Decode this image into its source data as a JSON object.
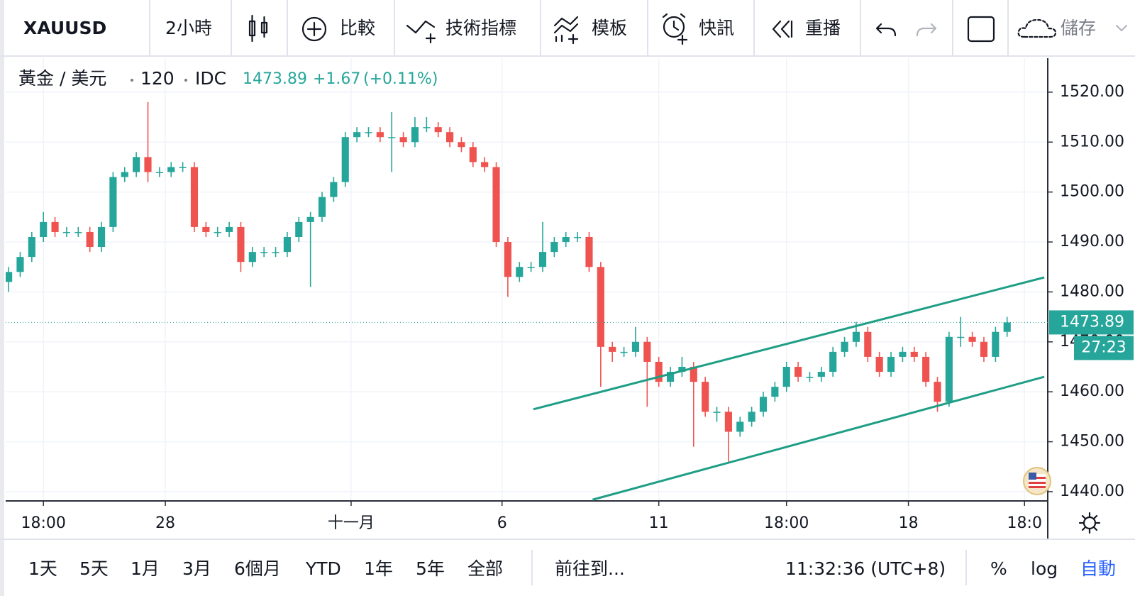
{
  "toolbar": {
    "symbol": "XAUUSD",
    "interval": "2小時",
    "compare": "比較",
    "indicators": "技術指標",
    "templates": "模板",
    "alerts": "快訊",
    "replay": "重播",
    "save": "儲存"
  },
  "chart_data": {
    "type": "candlestick",
    "instrument": "黃金 / 美元",
    "interval": "120",
    "source": "IDC",
    "last_price": 1473.89,
    "change": "+1.67",
    "change_percent": "(+0.11%)",
    "countdown": "27:23",
    "up_color": "#26a69a",
    "down_color": "#ef5350",
    "trendline_color": "#1f9e86",
    "open": [
      1482,
      1484,
      1487,
      1491,
      1494,
      1492,
      1492,
      1492,
      1489,
      1493,
      1503,
      1504,
      1507,
      1504,
      1504,
      1505,
      1505,
      1493,
      1492,
      1492,
      1493,
      1486,
      1488,
      1488,
      1488,
      1491,
      1494,
      1495,
      1499,
      1502,
      1511,
      1512,
      1512,
      1511,
      1511,
      1510,
      1513,
      1513,
      1512,
      1510,
      1509,
      1506,
      1505,
      1490,
      1483,
      1485,
      1485,
      1488,
      1490,
      1491,
      1491,
      1485,
      1469,
      1468,
      1468,
      1470,
      1466,
      1462,
      1464,
      1465,
      1462,
      1456,
      1456,
      1452,
      1454,
      1456,
      1459,
      1461,
      1465,
      1463,
      1463,
      1464,
      1468,
      1470,
      1472,
      1467,
      1464,
      1467,
      1468,
      1467,
      1462,
      1458,
      1471,
      1471,
      1470,
      1467,
      1472
    ],
    "high": [
      1485,
      1488,
      1492,
      1496,
      1495,
      1493,
      1493,
      1493,
      1494,
      1504,
      1505,
      1508,
      1518,
      1505,
      1506,
      1506,
      1506,
      1494,
      1493,
      1494,
      1494,
      1489,
      1489,
      1489,
      1492,
      1495,
      1496,
      1500,
      1503,
      1512,
      1513,
      1513,
      1513,
      1516,
      1512,
      1515,
      1515,
      1514,
      1513,
      1511,
      1510,
      1507,
      1506,
      1491,
      1486,
      1486,
      1494,
      1491,
      1492,
      1492,
      1492,
      1486,
      1470,
      1469,
      1473,
      1471,
      1467,
      1465,
      1467,
      1466,
      1463,
      1457,
      1457,
      1455,
      1457,
      1460,
      1462,
      1466,
      1466,
      1464,
      1465,
      1469,
      1471,
      1474,
      1473,
      1468,
      1468,
      1469,
      1469,
      1468,
      1463,
      1472,
      1475,
      1472,
      1471,
      1473,
      1475
    ],
    "low": [
      1480,
      1483,
      1486,
      1490,
      1491,
      1491,
      1491,
      1488,
      1488,
      1492,
      1502,
      1503,
      1502,
      1503,
      1503,
      1504,
      1492,
      1491,
      1491,
      1491,
      1484,
      1485,
      1487,
      1487,
      1487,
      1490,
      1481,
      1494,
      1498,
      1501,
      1510,
      1511,
      1510,
      1504,
      1509,
      1509,
      1512,
      1511,
      1509,
      1508,
      1505,
      1504,
      1489,
      1479,
      1482,
      1484,
      1484,
      1487,
      1489,
      1490,
      1484,
      1461,
      1466,
      1467,
      1467,
      1457,
      1461,
      1461,
      1463,
      1449,
      1455,
      1454,
      1446,
      1451,
      1453,
      1455,
      1458,
      1460,
      1462,
      1462,
      1462,
      1463,
      1467,
      1469,
      1466,
      1463,
      1463,
      1466,
      1466,
      1461,
      1456,
      1457,
      1469,
      1469,
      1466,
      1466,
      1471
    ],
    "close": [
      1484,
      1487,
      1491,
      1494,
      1492,
      1492,
      1492,
      1489,
      1493,
      1503,
      1504,
      1507,
      1504,
      1504,
      1505,
      1505,
      1493,
      1492,
      1492,
      1493,
      1486,
      1488,
      1488,
      1488,
      1491,
      1494,
      1495,
      1499,
      1502,
      1511,
      1512,
      1512,
      1511,
      1511,
      1510,
      1513,
      1513,
      1512,
      1510,
      1509,
      1506,
      1505,
      1490,
      1483,
      1485,
      1485,
      1488,
      1490,
      1491,
      1491,
      1485,
      1469,
      1468,
      1468,
      1470,
      1466,
      1462,
      1464,
      1465,
      1462,
      1456,
      1456,
      1452,
      1454,
      1456,
      1459,
      1461,
      1465,
      1463,
      1463,
      1464,
      1468,
      1470,
      1472,
      1467,
      1464,
      1467,
      1468,
      1467,
      1462,
      1458,
      1471,
      1471,
      1470,
      1467,
      1472,
      1473.89
    ],
    "trendlines": [
      {
        "x": [
          45.2,
          89.2
        ],
        "y": [
          1456.5,
          1482.9
        ]
      },
      {
        "x": [
          50.3,
          89.2
        ],
        "y": [
          1438.4,
          1463.0
        ]
      }
    ],
    "xlim": [
      -0.25,
      89.5
    ],
    "xticks": [
      {
        "value": 3,
        "label": "18:00"
      },
      {
        "value": 13.5,
        "label": "28"
      },
      {
        "value": 29.5,
        "label": "十一月"
      },
      {
        "value": 42.5,
        "label": "6"
      },
      {
        "value": 56,
        "label": "11"
      },
      {
        "value": 67,
        "label": "18:00"
      },
      {
        "value": 77.5,
        "label": "18"
      },
      {
        "value": 87.5,
        "label": "18:0"
      }
    ],
    "ylim": [
      1438.15,
      1526.8
    ],
    "yticks": [
      {
        "value": 1440,
        "label": "1440.00"
      },
      {
        "value": 1450,
        "label": "1450.00"
      },
      {
        "value": 1460,
        "label": "1460.00"
      },
      {
        "value": 1470,
        "label": "1470.00"
      },
      {
        "value": 1480,
        "label": "1480.00"
      },
      {
        "value": 1490,
        "label": "1490.00"
      },
      {
        "value": 1500,
        "label": "1500.00"
      },
      {
        "value": 1510,
        "label": "1510.00"
      },
      {
        "value": 1520,
        "label": "1520.00"
      }
    ],
    "grid": true
  },
  "bottom_bar": {
    "ranges": [
      "1天",
      "5天",
      "1月",
      "3月",
      "6個月",
      "YTD",
      "1年",
      "5年",
      "全部"
    ],
    "goto": "前往到...",
    "clock": "11:32:36 (UTC+8)",
    "percent": "%",
    "log": "log",
    "auto": "自動"
  }
}
